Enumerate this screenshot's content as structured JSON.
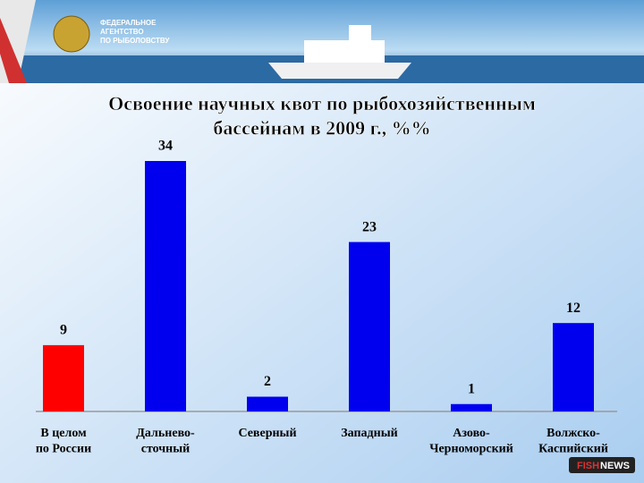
{
  "header": {
    "agency": "ФЕДЕРАЛЬНОЕ\nАГЕНТСТВО\nПО РЫБОЛОВСТВУ"
  },
  "brand": {
    "part1": "FISH",
    "part2": "NEWS"
  },
  "chart_data": {
    "type": "bar",
    "title": "Освоение научных квот по рыбохозяйственным\nбассейнам в 2009 г., %%",
    "categories": [
      "В целом\nпо России",
      "Дальнево-\nсточный",
      "Северный",
      "Западный",
      "Азово-\nЧерноморский",
      "Волжско-\nКаспийский"
    ],
    "values": [
      9,
      34,
      2,
      23,
      1,
      12
    ],
    "colors": [
      "#ff0000",
      "#0000ee",
      "#0000ee",
      "#0000ee",
      "#0000ee",
      "#0000ee"
    ]
  }
}
